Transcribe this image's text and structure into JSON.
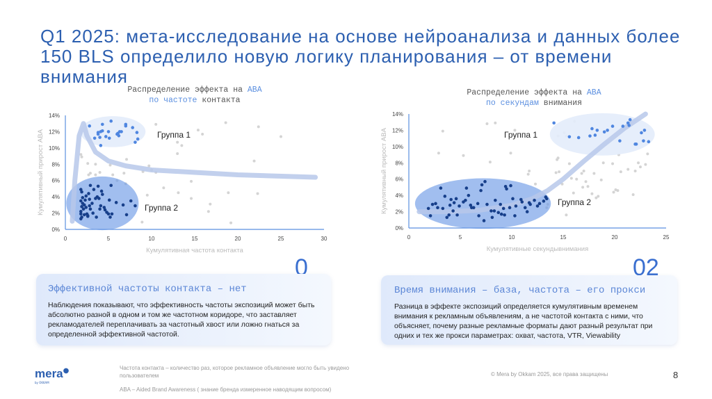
{
  "title": "Q1 2025: мета-исследование на основе нейроанализа и данных более 150 BLS определило новую логику планирования – от времени внимания",
  "colors": {
    "accent": "#2c5fb0",
    "group1_point": "#4f86e0",
    "group2_point": "#173f8a",
    "gray_point": "#d4d4d4",
    "trend": "#b7c8ea"
  },
  "chart_data": [
    {
      "type": "scatter",
      "title_parts": [
        "Распределение эффекта на ",
        "ABA",
        "по частоте",
        " контакта"
      ],
      "xlabel": "Кумулятивная частота контакта",
      "ylabel": "Кумулятивный прирост ABA",
      "xlim": [
        0,
        30
      ],
      "ylim": [
        0,
        14
      ],
      "xticks": [
        "0",
        "5",
        "10",
        "15",
        "20",
        "25",
        "30"
      ],
      "yticks": [
        "0%",
        "2%",
        "4%",
        "6%",
        "8%",
        "10%",
        "12%",
        "14%"
      ],
      "group_labels": [
        "Группа 1",
        "Группа 2"
      ],
      "regions": [
        {
          "cx": 5.5,
          "cy": 12,
          "rx": 3.8,
          "ry": 1.9
        },
        {
          "cx": 4.3,
          "cy": 3.2,
          "rx": 4.2,
          "ry": 3.3
        }
      ],
      "trend": [
        [
          0.8,
          1
        ],
        [
          1.1,
          6
        ],
        [
          1.6,
          11.5
        ],
        [
          2.1,
          13
        ],
        [
          2.5,
          11.5
        ],
        [
          3.5,
          9.5
        ],
        [
          5,
          8.4
        ],
        [
          7,
          7.8
        ],
        [
          10,
          7.3
        ],
        [
          15,
          7
        ],
        [
          20,
          6.7
        ],
        [
          29,
          6.4
        ]
      ],
      "group1": [
        [
          2.8,
          12.7
        ],
        [
          4.3,
          12.9
        ],
        [
          5.3,
          13.3
        ],
        [
          7,
          12.9
        ],
        [
          7,
          12.7
        ],
        [
          7.8,
          12.5
        ],
        [
          3.8,
          11.9
        ],
        [
          4.1,
          12
        ],
        [
          4.3,
          12.1
        ],
        [
          5,
          12
        ],
        [
          6.1,
          11.8
        ],
        [
          6.3,
          12
        ],
        [
          6.5,
          12
        ],
        [
          8.3,
          11.9
        ],
        [
          3.4,
          11.2
        ],
        [
          4,
          11.3
        ],
        [
          4.7,
          11.4
        ],
        [
          5.1,
          11.2
        ],
        [
          6,
          11.7
        ],
        [
          6.2,
          11.5
        ],
        [
          8.4,
          11.1
        ],
        [
          8.1,
          10.7
        ],
        [
          4.1,
          10.3
        ],
        [
          3.8,
          11.7
        ]
      ],
      "group2": [
        [
          1.8,
          4.9
        ],
        [
          1.9,
          4.6
        ],
        [
          2,
          3.9
        ],
        [
          1.8,
          3.5
        ],
        [
          2,
          3.2
        ],
        [
          1.9,
          2.8
        ],
        [
          2.1,
          2.5
        ],
        [
          1.8,
          2.2
        ],
        [
          1.8,
          1.9
        ],
        [
          1.9,
          1.5
        ],
        [
          1.8,
          1.3
        ],
        [
          2.3,
          3.6
        ],
        [
          2.2,
          3
        ],
        [
          2.4,
          2.7
        ],
        [
          2.5,
          1.9
        ],
        [
          2.6,
          1.6
        ],
        [
          2.7,
          4.4
        ],
        [
          2.8,
          3.7
        ],
        [
          2.8,
          2.9
        ],
        [
          2.9,
          2.5
        ],
        [
          2.9,
          5.4
        ],
        [
          3.1,
          3.2
        ],
        [
          3.2,
          2
        ],
        [
          3.3,
          4.9
        ],
        [
          3.5,
          3.8
        ],
        [
          3.6,
          1.5
        ],
        [
          3.7,
          4.0
        ],
        [
          3.8,
          5.3
        ],
        [
          3.9,
          3.8
        ],
        [
          4,
          2.5
        ],
        [
          4.1,
          2.9
        ],
        [
          4.2,
          4.7
        ],
        [
          4.3,
          4.3
        ],
        [
          4.5,
          2.7
        ],
        [
          4.6,
          2.4
        ],
        [
          4.8,
          2.1
        ],
        [
          5,
          1.9
        ],
        [
          5.1,
          3.6
        ],
        [
          5.2,
          1.5
        ],
        [
          5.3,
          5.4
        ],
        [
          5.4,
          1.9
        ],
        [
          5.9,
          3.3
        ],
        [
          6.7,
          3
        ],
        [
          7.1,
          1.8
        ],
        [
          7.6,
          3.5
        ],
        [
          8.1,
          2.9
        ],
        [
          2.2,
          1.8
        ],
        [
          2.4,
          4.1
        ],
        [
          2.6,
          1.7
        ]
      ],
      "other": [
        [
          1.8,
          9.2
        ],
        [
          1.9,
          8.9
        ],
        [
          2.6,
          8.1
        ],
        [
          3.5,
          8
        ],
        [
          5.2,
          7.9
        ],
        [
          7.1,
          8.6
        ],
        [
          9.7,
          7.8
        ],
        [
          10,
          7.3
        ],
        [
          10.5,
          7
        ],
        [
          9,
          7.1
        ],
        [
          2.9,
          6.9
        ],
        [
          4,
          7
        ],
        [
          6.8,
          6.9
        ],
        [
          2.7,
          6.7
        ],
        [
          3.5,
          6.7
        ],
        [
          5.5,
          6.7
        ],
        [
          6,
          6
        ],
        [
          7,
          5.6
        ],
        [
          11.4,
          5.1
        ],
        [
          14.6,
          5.9
        ],
        [
          9.5,
          4.2
        ],
        [
          13.1,
          4.5
        ],
        [
          14.6,
          3.8
        ],
        [
          16.8,
          3.1
        ],
        [
          16.6,
          2.2
        ],
        [
          8.9,
          0.9
        ],
        [
          19.2,
          0.8
        ],
        [
          18.9,
          4.5
        ],
        [
          22.3,
          4.4
        ],
        [
          21.9,
          8.4
        ],
        [
          25,
          11.4
        ],
        [
          22.4,
          12.6
        ],
        [
          18.6,
          13.1
        ],
        [
          15.4,
          12.2
        ],
        [
          15.9,
          11.7
        ],
        [
          13,
          10.7
        ],
        [
          13.5,
          10.3
        ],
        [
          13,
          9.3
        ],
        [
          10.5,
          12.9
        ]
      ]
    },
    {
      "type": "scatter",
      "title_parts": [
        "Распределение эффекта на ",
        "ABA",
        "по секундам",
        " внимания"
      ],
      "xlabel": "Кумулятивные секундывнимания",
      "ylabel": "Кумулятивный прирост ABA",
      "xlim": [
        0,
        25
      ],
      "ylim": [
        0,
        14
      ],
      "xticks": [
        "0",
        "5",
        "10",
        "15",
        "20",
        "25"
      ],
      "yticks": [
        "0%",
        "2%",
        "4%",
        "6%",
        "8%",
        "10%",
        "12%",
        "14%"
      ],
      "group_labels": [
        "Группа 1",
        "Группа 2"
      ],
      "regions": [
        {
          "cx": 18.8,
          "cy": 11.5,
          "rx": 5.1,
          "ry": 2.6
        },
        {
          "cx": 7.2,
          "cy": 3,
          "rx": 6.6,
          "ry": 3.1
        }
      ],
      "trend": [
        [
          1,
          2
        ],
        [
          4,
          2
        ],
        [
          7,
          2.2
        ],
        [
          10,
          2.8
        ],
        [
          12,
          3.6
        ],
        [
          13.5,
          4.6
        ],
        [
          15,
          6
        ],
        [
          17,
          8.2
        ],
        [
          19,
          10.3
        ],
        [
          21,
          12.3
        ],
        [
          23,
          14
        ]
      ],
      "group1": [
        [
          14.1,
          12.9
        ],
        [
          15.6,
          11.2
        ],
        [
          16.5,
          11.1
        ],
        [
          17.6,
          11.3
        ],
        [
          17.8,
          12.2
        ],
        [
          18.1,
          11.4
        ],
        [
          18.3,
          12
        ],
        [
          19,
          11.8
        ],
        [
          19.3,
          12
        ],
        [
          19.8,
          12.5
        ],
        [
          20.5,
          10.7
        ],
        [
          20.8,
          12.5
        ],
        [
          21.3,
          12.9
        ],
        [
          21.5,
          13.3
        ],
        [
          21.4,
          12.6
        ],
        [
          22,
          10.3
        ],
        [
          22.1,
          10.3
        ],
        [
          22.6,
          11.7
        ],
        [
          22.8,
          10.7
        ],
        [
          22.9,
          12
        ],
        [
          23.3,
          10.6
        ]
      ],
      "group2": [
        [
          1.9,
          2.4
        ],
        [
          2.1,
          1.5
        ],
        [
          2.3,
          2.9
        ],
        [
          2.6,
          3
        ],
        [
          2.8,
          2.5
        ],
        [
          3.1,
          4.9
        ],
        [
          3.3,
          2.4
        ],
        [
          3.5,
          3.9
        ],
        [
          3.7,
          1.3
        ],
        [
          3.9,
          1.6
        ],
        [
          4,
          2.8
        ],
        [
          4.1,
          3.5
        ],
        [
          4.3,
          2.1
        ],
        [
          4.4,
          3.1
        ],
        [
          4.6,
          3.6
        ],
        [
          4.7,
          1.6
        ],
        [
          4.9,
          2.7
        ],
        [
          5.3,
          3.2
        ],
        [
          5.5,
          3.4
        ],
        [
          5.6,
          4.9
        ],
        [
          5.8,
          4
        ],
        [
          6,
          2.8
        ],
        [
          6.1,
          2.5
        ],
        [
          6.3,
          2.5
        ],
        [
          6.7,
          3
        ],
        [
          6.8,
          1.5
        ],
        [
          7,
          4.6
        ],
        [
          7.1,
          5.3
        ],
        [
          7.3,
          0.9
        ],
        [
          7.4,
          5.7
        ],
        [
          7.6,
          2.9
        ],
        [
          8,
          2.1
        ],
        [
          8.1,
          1.3
        ],
        [
          8.3,
          2.1
        ],
        [
          8.4,
          3.4
        ],
        [
          8.7,
          1.9
        ],
        [
          8.9,
          2.9
        ],
        [
          9,
          1.7
        ],
        [
          9.2,
          2.4
        ],
        [
          9.3,
          1.6
        ],
        [
          9.4,
          5.1
        ],
        [
          9.5,
          4.8
        ],
        [
          9.8,
          2.5
        ],
        [
          9.9,
          5.2
        ],
        [
          10.1,
          3.6
        ],
        [
          10.3,
          1.5
        ],
        [
          10.4,
          2.7
        ],
        [
          10.9,
          3.5
        ],
        [
          11,
          3.2
        ],
        [
          11.3,
          2.5
        ],
        [
          11.5,
          2
        ],
        [
          11.7,
          3.1
        ],
        [
          11.8,
          2.9
        ],
        [
          12.2,
          3.4
        ],
        [
          12.5,
          2.7
        ],
        [
          12.7,
          3
        ],
        [
          13.1,
          3.3
        ],
        [
          13.3,
          3.8
        ],
        [
          13.4,
          3.6
        ]
      ],
      "other": [
        [
          2.9,
          9.2
        ],
        [
          3.3,
          11.9
        ],
        [
          5.3,
          8.9
        ],
        [
          7.6,
          12.8
        ],
        [
          8.4,
          12.9
        ],
        [
          7.9,
          8.1
        ],
        [
          9.9,
          9.2
        ],
        [
          10.3,
          12
        ],
        [
          11.6,
          6.6
        ],
        [
          11.7,
          7
        ],
        [
          12.3,
          5.4
        ],
        [
          13.4,
          2.5
        ],
        [
          13.5,
          2.9
        ],
        [
          14.4,
          8.4
        ],
        [
          14.5,
          8.6
        ],
        [
          14.3,
          6.8
        ],
        [
          14.6,
          6.9
        ],
        [
          14.9,
          5.4
        ],
        [
          15.3,
          1.6
        ],
        [
          15.6,
          7.9
        ],
        [
          15.8,
          6.1
        ],
        [
          16,
          4.3
        ],
        [
          16.1,
          13.1
        ],
        [
          16.3,
          6
        ],
        [
          16.8,
          6.7
        ],
        [
          17,
          7
        ],
        [
          16.9,
          5
        ],
        [
          17.2,
          5.7
        ],
        [
          17.4,
          5.1
        ],
        [
          17.8,
          4.2
        ],
        [
          18,
          6.7
        ],
        [
          18.2,
          3.7
        ],
        [
          18.4,
          3.9
        ],
        [
          18.7,
          5.9
        ],
        [
          18.9,
          8
        ],
        [
          19.8,
          7.9
        ],
        [
          19.9,
          4.4
        ],
        [
          20.3,
          4.6
        ],
        [
          20.1,
          4.7
        ],
        [
          20.4,
          9
        ],
        [
          20.6,
          6.9
        ],
        [
          21.3,
          7.2
        ],
        [
          21.8,
          4.1
        ],
        [
          22,
          7
        ],
        [
          22.3,
          8
        ],
        [
          22.5,
          7.5
        ],
        [
          23,
          7.8
        ],
        [
          23.2,
          9.1
        ],
        [
          15.1,
          11.7
        ],
        [
          15.3,
          11.3
        ],
        [
          14.5,
          11.3
        ]
      ]
    }
  ],
  "cards": [
    {
      "number": "0",
      "heading": "Эффективной частоты контакта – нет",
      "body": "Наблюдения показывают, что эффективность частоты экспозиций может быть абсолютно разной в одном и том же частотном коридоре, что заставляет рекламодателей переплачивать за частотный хвост или ложно гнаться за определенной эффективной частотой."
    },
    {
      "number": "02",
      "heading": "Время внимания – база, частота – его прокси",
      "body": "Разница в эффекте экспозиций определяется кумулятивным временем внимания к рекламным объявлениям, а не частотой контакта с ними, что объясняет, почему разные рекламные форматы дают разный результат при одних и тех же прокси параметрах: охват, частота, VTR, Viewability"
    }
  ],
  "footer": {
    "logo": "mera",
    "logo_sub": "by OKKAM",
    "note1": "Частота контакта – количество раз, которое рекламное объявление могло быть увидено пользователем",
    "note2": "ABA – Aided Brand Awareness ( знание бренда измеренное наводящим вопросом)",
    "copyright": "© Mera by Okkam 2025, все права защищены",
    "page": "8"
  }
}
